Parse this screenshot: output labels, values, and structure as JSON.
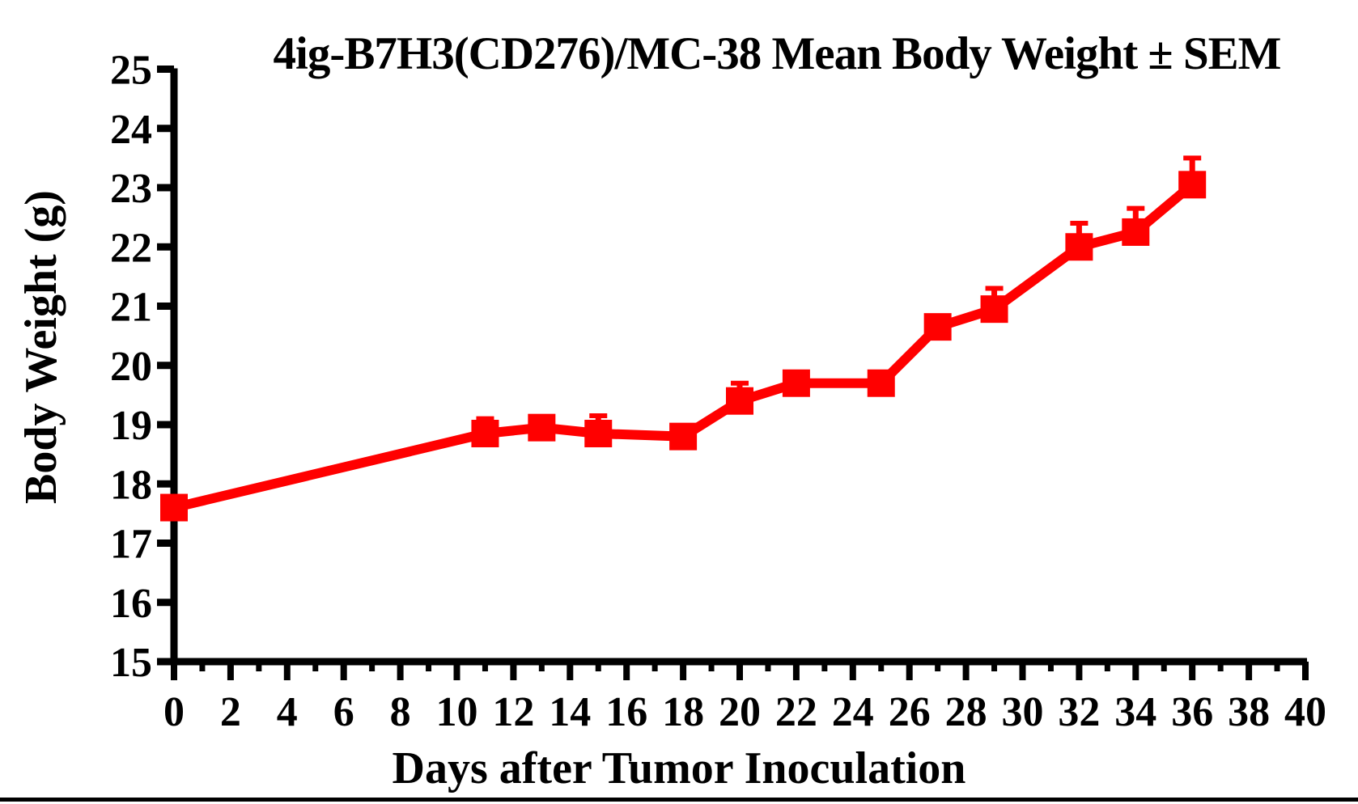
{
  "page": {
    "background": "#FFFFFF",
    "divider_bar_color": "#000000",
    "axis_color": "#000000"
  },
  "chart_data": {
    "type": "line",
    "title": "4ig-B7H3(CD276)/MC-38 Mean Body Weight ± SEM",
    "xlabel": "Days after Tumor Inoculation",
    "ylabel": "Body Weight (g)",
    "xlim": [
      0,
      40
    ],
    "ylim": [
      15,
      25
    ],
    "x_tick_labels": [
      0,
      2,
      4,
      6,
      8,
      10,
      12,
      14,
      16,
      18,
      20,
      22,
      24,
      26,
      28,
      30,
      32,
      34,
      36,
      38,
      40
    ],
    "x_minor_tick_step": 1,
    "y_tick_labels": [
      15,
      16,
      17,
      18,
      19,
      20,
      21,
      22,
      23,
      24,
      25
    ],
    "grid": false,
    "legend_position": "none",
    "error_bars": "SEM upper only",
    "series": [
      {
        "name": "4ig-B7H3(CD276)/MC-38 mean body weight",
        "color": "#FF0000",
        "marker": "filled-square",
        "x": [
          0,
          11,
          13,
          15,
          18,
          20,
          22,
          25,
          27,
          29,
          32,
          34,
          36
        ],
        "y": [
          17.6,
          18.85,
          18.95,
          18.85,
          18.8,
          19.4,
          19.7,
          19.7,
          20.65,
          20.95,
          22.0,
          22.25,
          23.05
        ],
        "sem_upper": [
          0,
          0.25,
          0,
          0.3,
          0,
          0.3,
          0,
          0,
          0,
          0.35,
          0.4,
          0.4,
          0.45
        ]
      }
    ]
  }
}
